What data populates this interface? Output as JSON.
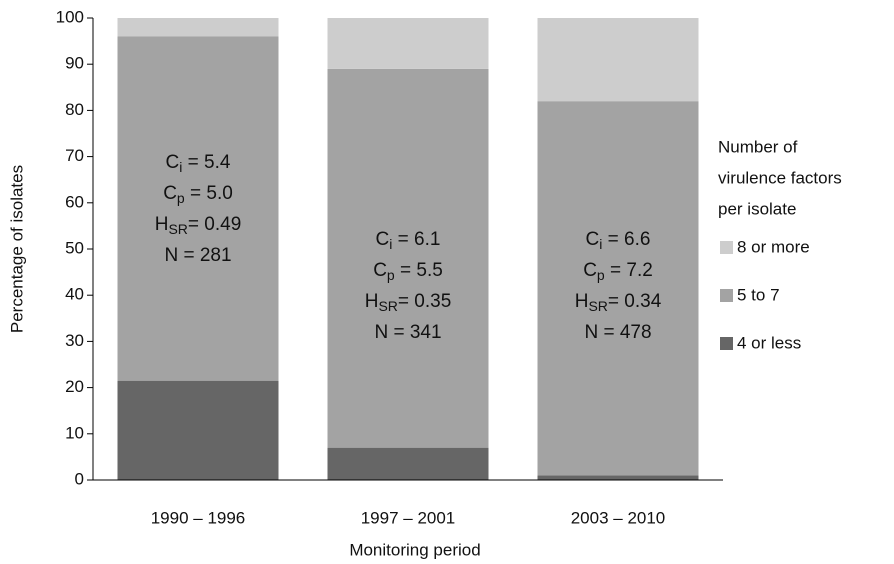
{
  "chart_data": {
    "type": "stacked_bar",
    "x_label": "Monitoring period",
    "y_label": "Percentage of isolates",
    "categories": [
      "1990 – 1996",
      "1997 – 2001",
      "2003 – 2010"
    ],
    "series": [
      {
        "name": "4 or less",
        "color": "#666666",
        "values": [
          21.5,
          7,
          1
        ]
      },
      {
        "name": "5 to 7",
        "color": "#a3a3a3",
        "values": [
          74.5,
          82,
          81
        ]
      },
      {
        "name": "8 or more",
        "color": "#cdcdcd",
        "values": [
          4,
          11,
          18
        ]
      }
    ],
    "ylim": [
      0,
      100
    ],
    "yticks": [
      0,
      10,
      20,
      30,
      40,
      50,
      60,
      70,
      80,
      90,
      100
    ],
    "legend_title": [
      "Number of",
      "virulence factors",
      "per isolate"
    ],
    "annotations": [
      {
        "lines": [
          {
            "main": "C",
            "sub": "i",
            "rest": " = 5.4"
          },
          {
            "main": "C",
            "sub": "p",
            "rest": " = 5.0"
          },
          {
            "main": "H",
            "sub": "SR",
            "rest": "= 0.49"
          },
          {
            "main": "N = 281"
          }
        ]
      },
      {
        "lines": [
          {
            "main": "C",
            "sub": "i",
            "rest": " = 6.1"
          },
          {
            "main": "C",
            "sub": "p",
            "rest": " = 5.5"
          },
          {
            "main": "H",
            "sub": "SR",
            "rest": "= 0.35"
          },
          {
            "main": "N = 341"
          }
        ]
      },
      {
        "lines": [
          {
            "main": "C",
            "sub": "i",
            "rest": " = 6.6"
          },
          {
            "main": "C",
            "sub": "p",
            "rest": " = 7.2"
          },
          {
            "main": "H",
            "sub": "SR",
            "rest": "= 0.34"
          },
          {
            "main": "N = 478"
          }
        ]
      }
    ]
  }
}
